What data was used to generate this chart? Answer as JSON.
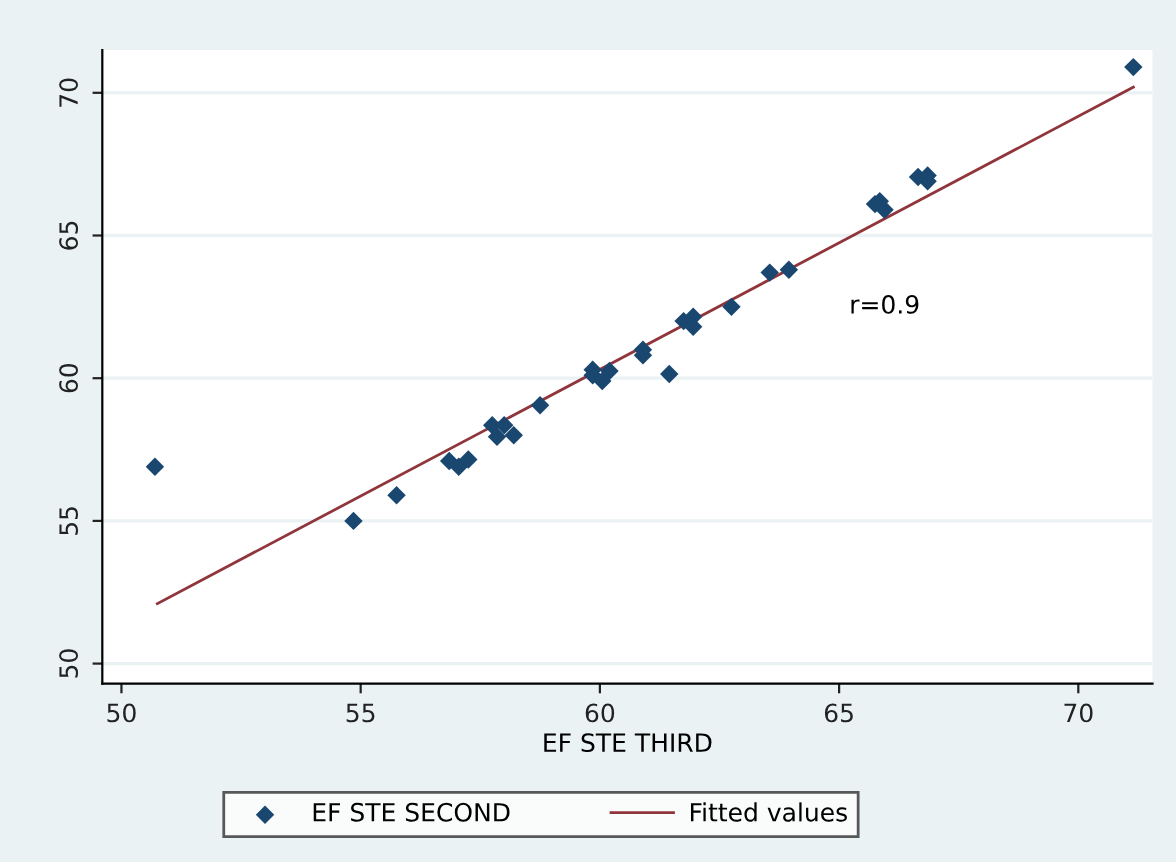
{
  "chart_data": {
    "type": "scatter",
    "xlabel": "EF STE THIRD",
    "xlim": [
      49.6,
      71.55
    ],
    "ylim": [
      49.3,
      71.5
    ],
    "xticks": [
      50,
      55,
      60,
      65,
      70
    ],
    "yticks": [
      50,
      55,
      60,
      65,
      70
    ],
    "grid": "y",
    "legend": "bottom",
    "marker": "diamond",
    "annotations": [
      "r=0.9"
    ],
    "series": [
      {
        "name": "EF STE SECOND",
        "color": "#1a476f",
        "x": [
          50.7,
          54.85,
          55.75,
          56.85,
          57.05,
          57.25,
          57.75,
          57.85,
          58.0,
          58.2,
          58.75,
          59.85,
          59.85,
          60.05,
          60.2,
          60.9,
          60.9,
          61.45,
          61.75,
          61.95,
          61.95,
          62.75,
          63.55,
          63.95,
          65.75,
          65.85,
          65.95,
          66.65,
          66.85,
          66.85,
          71.15
        ],
        "values": [
          56.9,
          55.0,
          55.9,
          57.1,
          56.9,
          57.15,
          58.35,
          57.95,
          58.35,
          58.0,
          59.05,
          60.3,
          60.1,
          59.9,
          60.25,
          60.8,
          61.0,
          60.15,
          62.0,
          62.15,
          61.8,
          62.5,
          63.7,
          63.8,
          66.1,
          66.2,
          65.9,
          67.05,
          67.1,
          66.9,
          70.9
        ]
      },
      {
        "name": "Fitted values",
        "type": "line",
        "color": "#90353b",
        "line_style": "solid",
        "marker": "none",
        "x": [
          50.75,
          71.15
        ],
        "values": [
          52.1,
          70.2
        ]
      }
    ]
  }
}
